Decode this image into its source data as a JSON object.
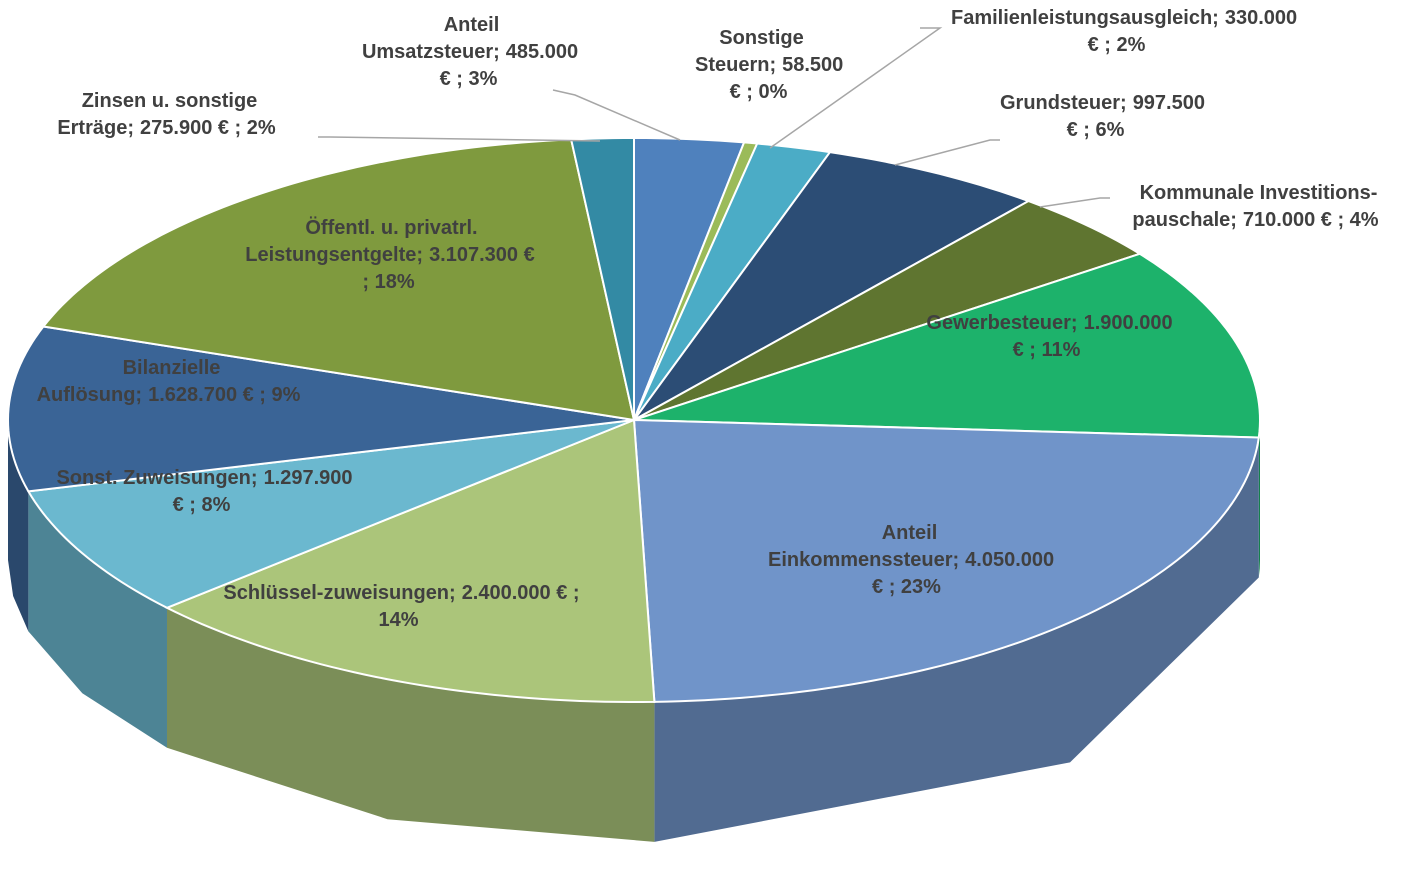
{
  "chart_data": {
    "type": "pie3d",
    "categories": [
      "Anteil Umsatzsteuer;",
      "Sonstige Steuern;",
      "Familienleistungsausgleich;",
      "Grundsteuer;",
      "Kommunale Investitions-pauschale;",
      "Gewerbesteuer;",
      "Anteil Einkommenssteuer;",
      "Schlüssel-zuweisungen;",
      "Sonst. Zuweisungen;",
      "Bilanzielle Auflösung;",
      "Öffentl. u. privatrl. Leistungsentgelte;",
      "Zinsen u. sonstige Erträge;"
    ],
    "values": [
      485000,
      58500,
      330000,
      997500,
      710000,
      1900000,
      4050000,
      2400000,
      1297900,
      1628700,
      3107300,
      275900
    ],
    "value_labels": [
      "485.000 € ; 3%",
      "58.500 € ; 0%",
      "330.000 € ; 2%",
      "997.500 € ; 6%",
      "710.000 € ; 4%",
      "1.900.000 € ; 11%",
      "4.050.000 € ; 23%",
      "2.400.000 € ; 14%",
      "1.297.900 € ; 8%",
      "1.628.700 € ; 9%",
      "3.107.300 € ; 18%",
      "275.900 € ; 2%"
    ],
    "colors": [
      "#4f81bd",
      "#9bbb59",
      "#4bacc6",
      "#2c4d75",
      "#5f7530",
      "#1db26b",
      "#7094c9",
      "#abc57a",
      "#6bb8cf",
      "#3a6496",
      "#7f9a3e",
      "#338aa4"
    ]
  }
}
